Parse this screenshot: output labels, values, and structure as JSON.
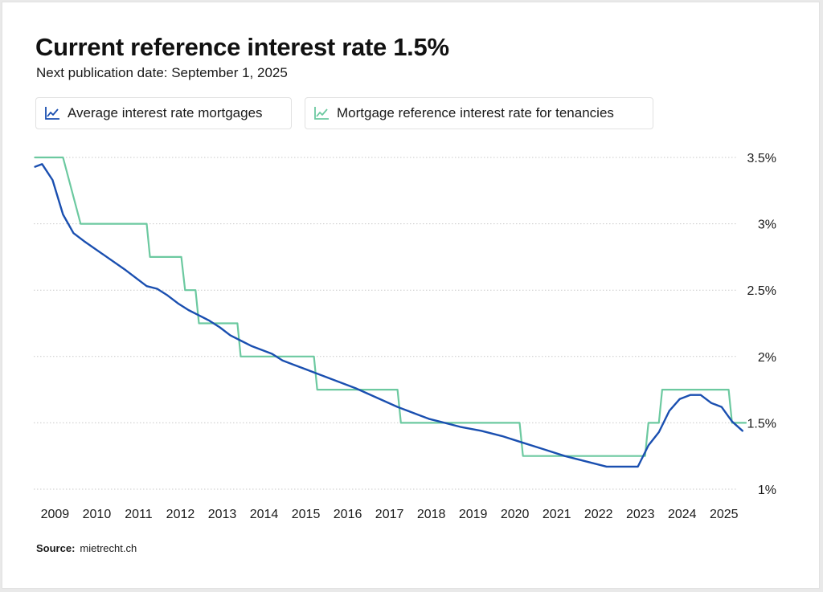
{
  "title": "Current reference interest rate 1.5%",
  "subtitle": "Next publication date: September 1, 2025",
  "legend": [
    {
      "label": "Average interest rate mortgages",
      "color": "#1a4fb0",
      "icon": "line-chart-icon"
    },
    {
      "label": "Mortgage reference interest rate for tenancies",
      "color": "#6cc9a0",
      "icon": "line-chart-icon"
    }
  ],
  "source": {
    "label": "Source:",
    "value": "mietrecht.ch"
  },
  "chart_data": {
    "type": "line",
    "title": "Current reference interest rate 1.5%",
    "xlabel": "",
    "ylabel": "",
    "y_axis_position": "right",
    "grid": "horizontal dotted",
    "legend_position": "top-left",
    "xlim": [
      2008.8,
      2025.6
    ],
    "ylim": [
      1,
      3.5
    ],
    "x_ticks": [
      2009,
      2010,
      2011,
      2012,
      2013,
      2014,
      2015,
      2016,
      2017,
      2018,
      2019,
      2020,
      2021,
      2022,
      2023,
      2024,
      2025
    ],
    "y_ticks": [
      {
        "value": 1,
        "label": "1%"
      },
      {
        "value": 1.5,
        "label": "1.5%"
      },
      {
        "value": 2,
        "label": "2%"
      },
      {
        "value": 2.5,
        "label": "2.5%"
      },
      {
        "value": 3,
        "label": "3%"
      },
      {
        "value": 3.5,
        "label": "3.5%"
      }
    ],
    "series": [
      {
        "name": "Average interest rate mortgages",
        "color": "#1a4fb0",
        "points": [
          [
            2008.83,
            3.43
          ],
          [
            2009.0,
            3.45
          ],
          [
            2009.25,
            3.33
          ],
          [
            2009.5,
            3.07
          ],
          [
            2009.75,
            2.93
          ],
          [
            2010.0,
            2.87
          ],
          [
            2010.5,
            2.76
          ],
          [
            2011.0,
            2.65
          ],
          [
            2011.5,
            2.53
          ],
          [
            2011.75,
            2.51
          ],
          [
            2012.0,
            2.46
          ],
          [
            2012.25,
            2.4
          ],
          [
            2012.5,
            2.35
          ],
          [
            2012.75,
            2.31
          ],
          [
            2013.0,
            2.27
          ],
          [
            2013.25,
            2.22
          ],
          [
            2013.5,
            2.16
          ],
          [
            2013.75,
            2.12
          ],
          [
            2014.0,
            2.08
          ],
          [
            2014.5,
            2.02
          ],
          [
            2014.75,
            1.97
          ],
          [
            2015.0,
            1.94
          ],
          [
            2015.5,
            1.88
          ],
          [
            2016.0,
            1.82
          ],
          [
            2016.5,
            1.76
          ],
          [
            2017.0,
            1.69
          ],
          [
            2017.5,
            1.62
          ],
          [
            2018.0,
            1.56
          ],
          [
            2018.25,
            1.53
          ],
          [
            2018.5,
            1.51
          ],
          [
            2019.0,
            1.47
          ],
          [
            2019.5,
            1.44
          ],
          [
            2020.0,
            1.4
          ],
          [
            2020.5,
            1.35
          ],
          [
            2021.0,
            1.3
          ],
          [
            2021.5,
            1.25
          ],
          [
            2022.0,
            1.21
          ],
          [
            2022.5,
            1.17
          ],
          [
            2022.75,
            1.17
          ],
          [
            2023.25,
            1.17
          ],
          [
            2023.5,
            1.33
          ],
          [
            2023.75,
            1.43
          ],
          [
            2024.0,
            1.59
          ],
          [
            2024.25,
            1.68
          ],
          [
            2024.5,
            1.71
          ],
          [
            2024.75,
            1.71
          ],
          [
            2025.0,
            1.65
          ],
          [
            2025.25,
            1.62
          ],
          [
            2025.5,
            1.51
          ],
          [
            2025.75,
            1.44
          ]
        ]
      },
      {
        "name": "Mortgage reference interest rate for tenancies",
        "color": "#6cc9a0",
        "points": [
          [
            2008.83,
            3.5
          ],
          [
            2009.5,
            3.5
          ],
          [
            2009.92,
            3.0
          ],
          [
            2011.5,
            3.0
          ],
          [
            2011.58,
            2.75
          ],
          [
            2012.33,
            2.75
          ],
          [
            2012.42,
            2.5
          ],
          [
            2012.67,
            2.5
          ],
          [
            2012.75,
            2.25
          ],
          [
            2013.67,
            2.25
          ],
          [
            2013.75,
            2.0
          ],
          [
            2015.5,
            2.0
          ],
          [
            2015.58,
            1.75
          ],
          [
            2017.5,
            1.75
          ],
          [
            2017.58,
            1.5
          ],
          [
            2020.42,
            1.5
          ],
          [
            2020.5,
            1.25
          ],
          [
            2023.42,
            1.25
          ],
          [
            2023.5,
            1.5
          ],
          [
            2023.75,
            1.5
          ],
          [
            2023.83,
            1.75
          ],
          [
            2025.42,
            1.75
          ],
          [
            2025.5,
            1.5
          ],
          [
            2025.83,
            1.5
          ]
        ]
      }
    ]
  }
}
